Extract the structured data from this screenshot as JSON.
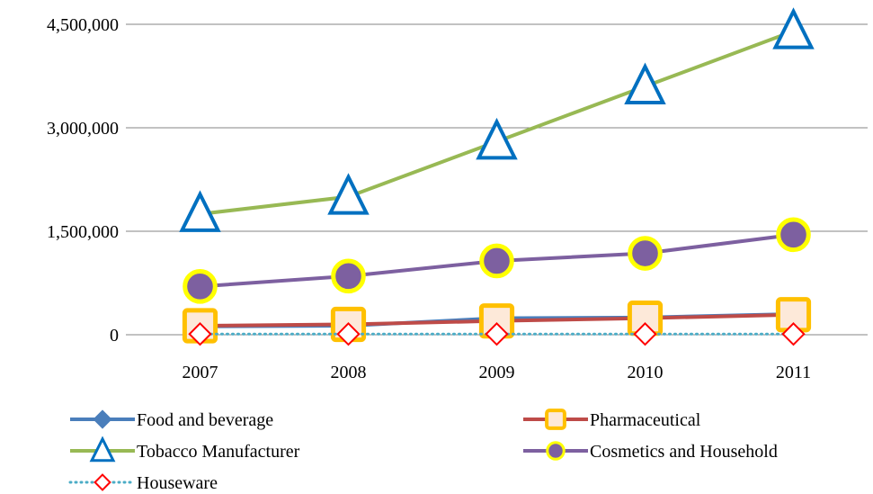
{
  "chart_data": {
    "type": "line",
    "title": "",
    "xlabel": "",
    "ylabel": "",
    "categories": [
      "2007",
      "2008",
      "2009",
      "2010",
      "2011"
    ],
    "ylim": [
      0,
      4500000
    ],
    "y_ticks": [
      {
        "value": 0,
        "label": "0"
      },
      {
        "value": 1500000,
        "label": "1,500,000"
      },
      {
        "value": 3000000,
        "label": "3,000,000"
      },
      {
        "value": 4500000,
        "label": "4,500,000"
      }
    ],
    "grid": true,
    "legend_position": "bottom",
    "series": [
      {
        "name": "Food and beverage",
        "values": [
          120000,
          130000,
          240000,
          250000,
          300000
        ],
        "color": "#4a7ebb",
        "marker": "diamond",
        "line_style": "solid",
        "draw_order": 0
      },
      {
        "name": "Pharmaceutical",
        "values": [
          130000,
          150000,
          200000,
          240000,
          290000
        ],
        "color": "#be4b48",
        "marker": "square",
        "line_style": "solid",
        "marker_fill": "#fde9d9",
        "marker_stroke": "#ffc000",
        "draw_order": 1
      },
      {
        "name": "Tobacco Manufacturer",
        "values": [
          1750000,
          2000000,
          2800000,
          3600000,
          4400000
        ],
        "color": "#98b954",
        "marker": "triangle",
        "line_style": "solid",
        "marker_fill": "#ffffff",
        "marker_stroke": "#0070c0",
        "draw_order": 3
      },
      {
        "name": "Cosmetics and Household",
        "values": [
          700000,
          850000,
          1070000,
          1180000,
          1450000
        ],
        "color": "#7d60a0",
        "marker": "circle",
        "line_style": "solid",
        "marker_fill": "#7d60a0",
        "marker_stroke": "#ffff00",
        "draw_order": 2
      },
      {
        "name": "Houseware",
        "values": [
          10000,
          10000,
          10000,
          10000,
          10000
        ],
        "color": "#4bacc6",
        "marker": "diamond-open",
        "line_style": "dotted",
        "marker_fill": "#ffffff",
        "marker_stroke": "#ff0000",
        "draw_order": 4
      }
    ]
  }
}
